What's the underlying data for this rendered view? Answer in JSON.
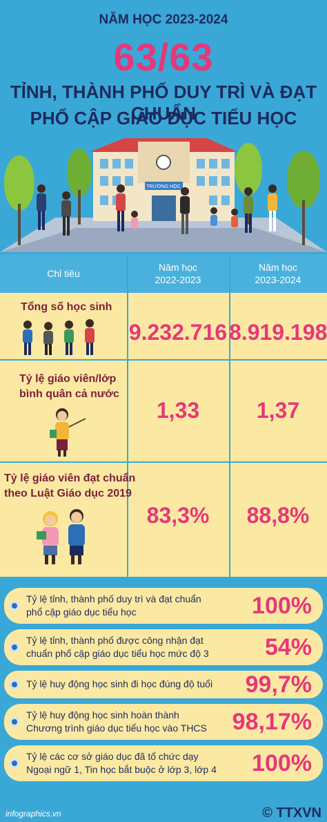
{
  "header": {
    "year": "NĂM HỌC 2023-2024",
    "big": "63/63",
    "line1": "TỈNH, THÀNH PHỐ DUY TRÌ VÀ ĐẠT CHUẨN",
    "line2": "PHỔ CẬP GIÁO DỤC TIỂU HỌC",
    "school_sign": "TRƯỜNG HỌC"
  },
  "table": {
    "headers": [
      "Chỉ tiêu",
      "Năm học 2022-2023",
      "Năm học 2023-2024"
    ],
    "h2a": "Năm học",
    "h2b": "2022-2023",
    "h3a": "Năm học",
    "h3b": "2023-2024",
    "rows": [
      {
        "label1": "Tổng số học sinh",
        "label2": "",
        "v1": "9.232.716",
        "v2": "8.919.198"
      },
      {
        "label1": "Tỷ lệ giáo viên/lớp",
        "label2": "bình quân cả nước",
        "v1": "1,33",
        "v2": "1,37"
      },
      {
        "label1": "Tỷ lệ giáo viên đạt chuẩn",
        "label2": "theo Luật Giáo dục 2019",
        "v1": "83,3%",
        "v2": "88,8%"
      }
    ]
  },
  "stats": [
    {
      "l1": "Tỷ lệ tỉnh, thành phố duy trì và đạt chuẩn",
      "l2": "phổ cập giáo dục tiểu học",
      "value": "100%"
    },
    {
      "l1": "Tỷ lệ tỉnh, thành phố được công nhận đạt",
      "l2": "chuẩn phổ cập giáo dục tiểu học mức độ 3",
      "value": "54%"
    },
    {
      "l1": "Tỷ lệ huy động học sinh đi học đúng độ tuổi",
      "l2": "",
      "value": "99,7%"
    },
    {
      "l1": "Tỷ lệ huy động học sinh hoàn thành",
      "l2": "Chương trình giáo dục tiểu học vào THCS",
      "value": "98,17%"
    },
    {
      "l1": "Tỷ lệ các cơ sở giáo dục đã tổ chức dạy",
      "l2": "Ngoại ngữ 1, Tin học bắt buộc ở lớp 3, lớp 4",
      "value": "100%"
    }
  ],
  "footer": {
    "site": "infographics.vn",
    "logo": "© TTXVN"
  },
  "colors": {
    "accent": "#e6377a",
    "navy": "#1d2a5e",
    "sky": "#3aa8d6",
    "cream": "#fbe9a3"
  }
}
